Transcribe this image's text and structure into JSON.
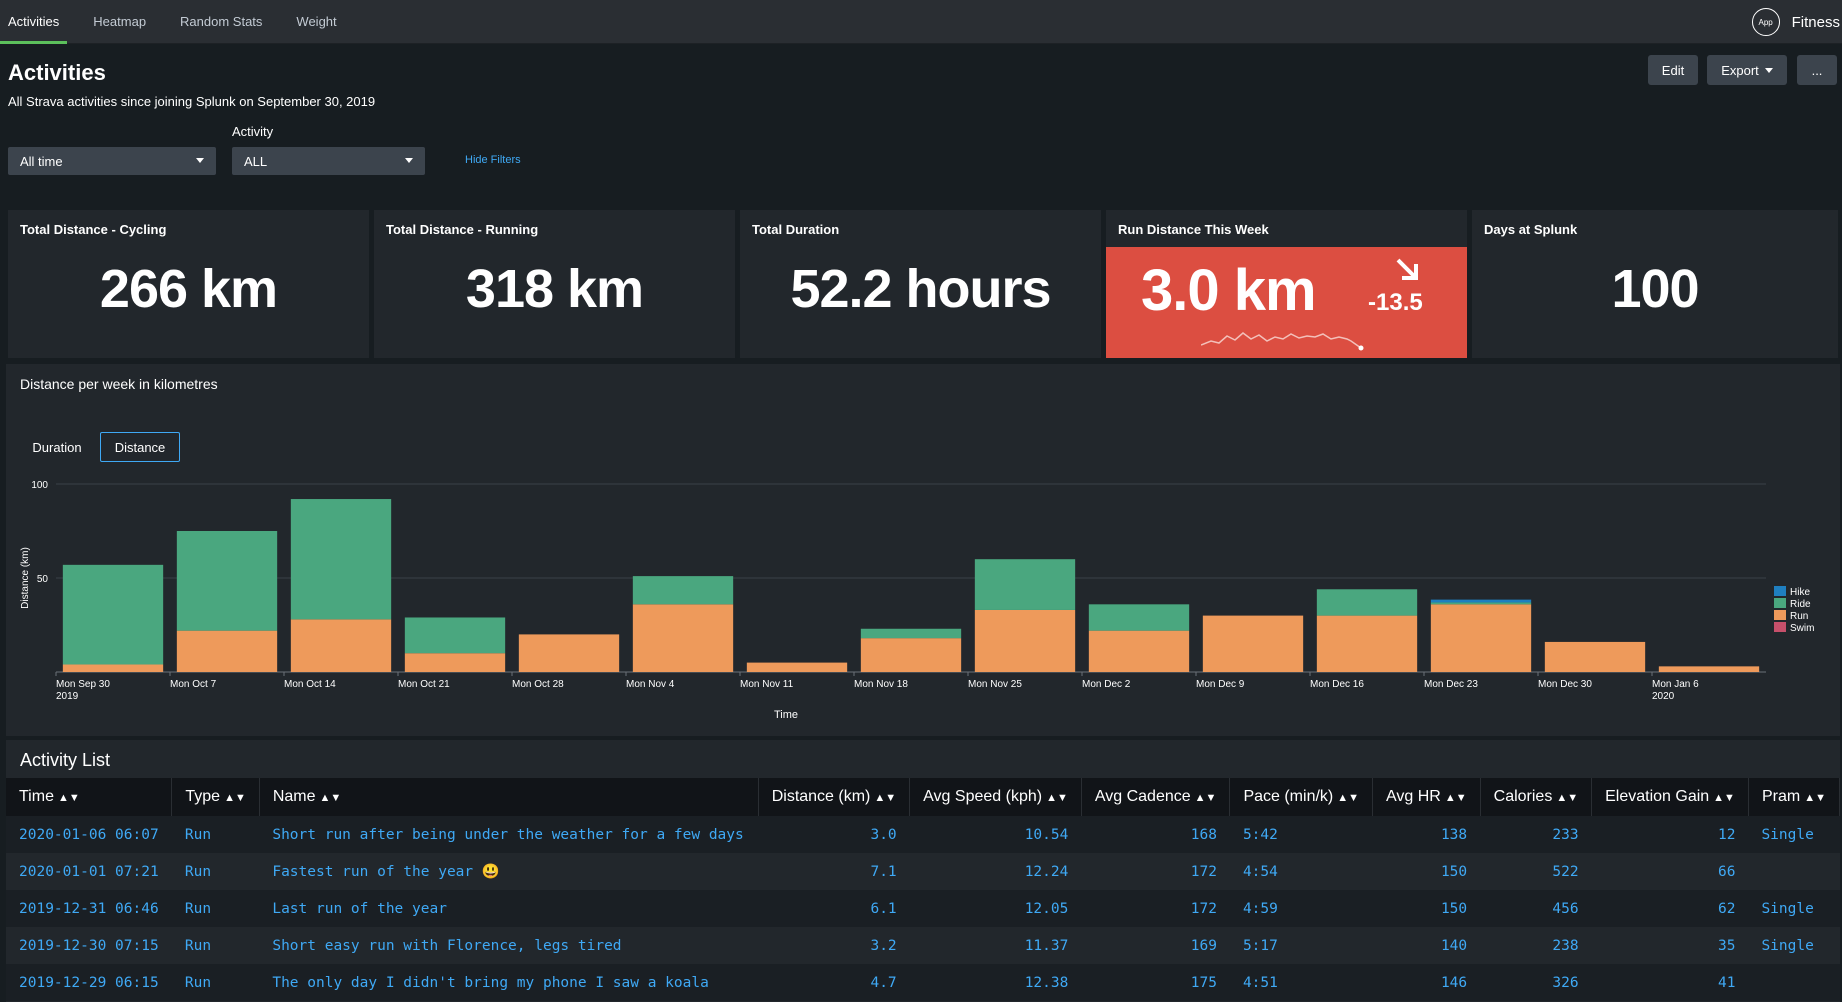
{
  "nav": {
    "tabs": [
      "Activities",
      "Heatmap",
      "Random Stats",
      "Weight"
    ],
    "app_icon": "App",
    "app_name": "Fitness"
  },
  "header": {
    "title": "Activities",
    "description": "All Strava activities since joining Splunk on September 30, 2019",
    "edit_label": "Edit",
    "export_label": "Export",
    "more_label": "...",
    "activity_label": "Activity",
    "time_filter": "All time",
    "activity_filter": "ALL",
    "hide_filters": "Hide Filters"
  },
  "kpis": [
    {
      "title": "Total Distance - Cycling",
      "value": "266 km"
    },
    {
      "title": "Total Distance - Running",
      "value": "318 km"
    },
    {
      "title": "Total Duration",
      "value": "52.2 hours"
    },
    {
      "title": "Run Distance This Week",
      "value": "3.0 km",
      "delta": "-13.5",
      "trend_icon": "arrow-down-right-icon",
      "color": "#dc4e41"
    },
    {
      "title": "Days at Splunk",
      "value": "100"
    }
  ],
  "chart_panel": {
    "title": "Distance per week in kilometres",
    "toggle_duration": "Duration",
    "toggle_distance": "Distance",
    "selected_toggle": "Distance"
  },
  "chart_data": {
    "type": "bar",
    "stacked": true,
    "categories": [
      "Mon Sep 30",
      "Mon Oct 7",
      "Mon Oct 14",
      "Mon Oct 21",
      "Mon Oct 28",
      "Mon Nov 4",
      "Mon Nov 11",
      "Mon Nov 18",
      "Mon Nov 25",
      "Mon Dec 2",
      "Mon Dec 9",
      "Mon Dec 16",
      "Mon Dec 23",
      "Mon Dec 30",
      "Mon Jan 6"
    ],
    "category_sublabels": {
      "0": "2019",
      "14": "2020"
    },
    "series": [
      {
        "name": "Run",
        "color": "#ee9a5b",
        "values": [
          4,
          22,
          28,
          10,
          20,
          36,
          5,
          18,
          33,
          22,
          30,
          30,
          36,
          16,
          3
        ]
      },
      {
        "name": "Ride",
        "color": "#4aa77f",
        "values": [
          53,
          53,
          64,
          19,
          0,
          15,
          0,
          5,
          27,
          14,
          0,
          14,
          1,
          0,
          0
        ]
      },
      {
        "name": "Hike",
        "color": "#1f7fc0",
        "values": [
          0,
          0,
          0,
          0,
          0,
          0,
          0,
          0,
          0,
          0,
          0,
          0,
          1.5,
          0,
          0
        ]
      },
      {
        "name": "Swim",
        "color": "#c7506b",
        "values": [
          0,
          0,
          0,
          0,
          0,
          0,
          0,
          0,
          0,
          0,
          0,
          0,
          0,
          0,
          0
        ]
      }
    ],
    "legend_order": [
      "Hike",
      "Ride",
      "Run",
      "Swim"
    ],
    "xlabel": "Time",
    "ylabel": "Distance (km)",
    "yticks": [
      50,
      100
    ],
    "ylim": [
      0,
      100
    ],
    "legend": "right",
    "grid": true
  },
  "list": {
    "title": "Activity List",
    "columns": [
      "Time",
      "Type",
      "Name",
      "Distance (km)",
      "Avg Speed (kph)",
      "Avg Cadence",
      "Pace (min/k)",
      "Avg HR",
      "Calories",
      "Elevation Gain",
      "Pram"
    ],
    "rows": [
      [
        "2020-01-06 06:07",
        "Run",
        "Short run after being under the weather for a few days",
        "3.0",
        "10.54",
        "168",
        "5:42",
        "138",
        "233",
        "12",
        "Single"
      ],
      [
        "2020-01-01 07:21",
        "Run",
        "Fastest run of the year 😃",
        "7.1",
        "12.24",
        "172",
        "4:54",
        "150",
        "522",
        "66",
        ""
      ],
      [
        "2019-12-31 06:46",
        "Run",
        "Last run of the year",
        "6.1",
        "12.05",
        "172",
        "4:59",
        "150",
        "456",
        "62",
        "Single"
      ],
      [
        "2019-12-30 07:15",
        "Run",
        "Short easy run with Florence, legs tired",
        "3.2",
        "11.37",
        "169",
        "5:17",
        "140",
        "238",
        "35",
        "Single"
      ],
      [
        "2019-12-29 06:15",
        "Run",
        "The only day I didn't bring my phone I saw a koala",
        "4.7",
        "12.38",
        "175",
        "4:51",
        "146",
        "326",
        "41",
        ""
      ]
    ]
  }
}
